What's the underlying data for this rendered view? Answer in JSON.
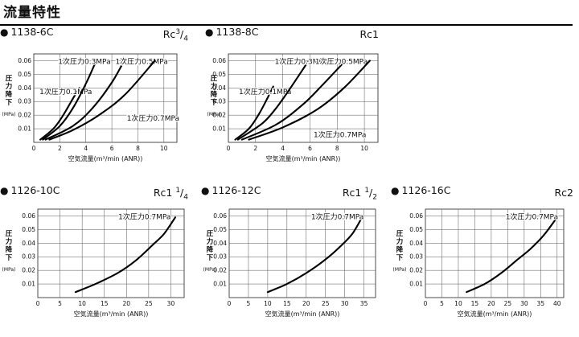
{
  "page": {
    "title": "流量特性"
  },
  "chart_data": [
    {
      "type": "line",
      "title": "1138-6C",
      "port": {
        "base": "Rc",
        "sup": "3",
        "sep": "/",
        "sub": "4"
      },
      "xlabel": "空気流量(m³/min (ANR))",
      "ylabel": [
        "圧",
        "力",
        "降",
        "下"
      ],
      "yunit": "(MPa)",
      "xlim": [
        0,
        11
      ],
      "ylim": [
        0,
        0.065
      ],
      "xticks": [
        0,
        2,
        4,
        6,
        8,
        10
      ],
      "yticks": [
        0.01,
        0.02,
        0.03,
        0.04,
        0.05,
        0.06
      ],
      "ytick_labels": [
        "0.01",
        "0.02",
        "0.03",
        "0.04",
        "0.05",
        "0.06"
      ],
      "grid": true,
      "series": [
        {
          "name": "1次圧力0.1MPa",
          "x": [
            0.5,
            1.5,
            2.2,
            3.0,
            3.5
          ],
          "y": [
            0.002,
            0.01,
            0.019,
            0.032,
            0.04
          ]
        },
        {
          "name": "1次圧力0.3MPa",
          "x": [
            0.7,
            2.0,
            3.0,
            4.0,
            4.8
          ],
          "y": [
            0.002,
            0.012,
            0.025,
            0.043,
            0.06
          ]
        },
        {
          "name": "1次圧力0.5MPa",
          "x": [
            0.9,
            3.0,
            4.5,
            6.0,
            7.0
          ],
          "y": [
            0.002,
            0.012,
            0.025,
            0.044,
            0.061
          ]
        },
        {
          "name": "1次圧力0.7MPa",
          "x": [
            1.2,
            3.0,
            5.0,
            7.0,
            9.3
          ],
          "y": [
            0.002,
            0.009,
            0.02,
            0.035,
            0.06
          ]
        }
      ]
    },
    {
      "type": "line",
      "title": "1138-8C",
      "port": {
        "base": "Rc1",
        "sup": "",
        "sep": "",
        "sub": ""
      },
      "xlabel": "空気流量(m³/min (ANR))",
      "ylabel": [
        "圧",
        "力",
        "降",
        "下"
      ],
      "yunit": "(MPa)",
      "xlim": [
        0,
        11
      ],
      "ylim": [
        0,
        0.065
      ],
      "xticks": [
        0,
        2,
        4,
        6,
        8,
        10
      ],
      "yticks": [
        0.01,
        0.02,
        0.03,
        0.04,
        0.05,
        0.06
      ],
      "ytick_labels": [
        "0.01",
        "0.02",
        "0.03",
        "0.04",
        "0.05",
        "0.06"
      ],
      "grid": true,
      "series": [
        {
          "name": "1次圧力0.1MPa",
          "x": [
            0.5,
            1.5,
            2.2,
            2.8,
            3.3
          ],
          "y": [
            0.002,
            0.01,
            0.02,
            0.031,
            0.041
          ]
        },
        {
          "name": "1次圧力0.3MPa",
          "x": [
            0.7,
            2.5,
            3.5,
            4.5,
            5.9
          ],
          "y": [
            0.002,
            0.014,
            0.025,
            0.039,
            0.06
          ]
        },
        {
          "name": "1次圧力0.5MPa",
          "x": [
            1.0,
            3.5,
            5.5,
            7.0,
            8.6
          ],
          "y": [
            0.002,
            0.013,
            0.028,
            0.043,
            0.06
          ]
        },
        {
          "name": "1次圧力0.7MPa",
          "x": [
            1.5,
            4.0,
            6.5,
            8.5,
            10.4
          ],
          "y": [
            0.002,
            0.011,
            0.024,
            0.04,
            0.06
          ]
        }
      ]
    },
    {
      "type": "line",
      "title": "1126-10C",
      "port": {
        "base": "Rc1 ",
        "sup": "1",
        "sep": "/",
        "sub": "4"
      },
      "xlabel": "空気流量(m³/min (ANR))",
      "ylabel": [
        "圧",
        "力",
        "降",
        "下"
      ],
      "yunit": "(MPa)",
      "xlim": [
        0,
        33
      ],
      "ylim": [
        0,
        0.065
      ],
      "xticks": [
        0,
        5,
        10,
        15,
        20,
        25,
        30
      ],
      "yticks": [
        0.01,
        0.02,
        0.03,
        0.04,
        0.05,
        0.06
      ],
      "ytick_labels": [
        "0.01",
        "0.02",
        "0.03",
        "0.04",
        "0.05",
        "0.06"
      ],
      "grid": true,
      "series": [
        {
          "name": "1次圧力0.7MPa",
          "x": [
            8.5,
            13,
            18,
            22,
            26,
            28.5,
            31
          ],
          "y": [
            0.004,
            0.01,
            0.018,
            0.027,
            0.039,
            0.047,
            0.059
          ]
        }
      ]
    },
    {
      "type": "line",
      "title": "1126-12C",
      "port": {
        "base": "Rc1 ",
        "sup": "1",
        "sep": "/",
        "sub": "2"
      },
      "xlabel": "空気流量(m³/min (ANR))",
      "ylabel": [
        "圧",
        "力",
        "降",
        "下"
      ],
      "yunit": "(MPa)",
      "xlim": [
        0,
        38
      ],
      "ylim": [
        0,
        0.065
      ],
      "xticks": [
        0,
        5,
        10,
        15,
        20,
        25,
        30,
        35
      ],
      "yticks": [
        0.01,
        0.02,
        0.03,
        0.04,
        0.05,
        0.06
      ],
      "ytick_labels": [
        "0.01",
        "0.02",
        "0.03",
        "0.04",
        "0.05",
        "0.06"
      ],
      "grid": true,
      "series": [
        {
          "name": "1次圧力0.7MPa",
          "x": [
            10,
            15,
            20,
            25,
            29,
            32,
            34.5
          ],
          "y": [
            0.004,
            0.01,
            0.018,
            0.028,
            0.038,
            0.047,
            0.059
          ]
        }
      ]
    },
    {
      "type": "line",
      "title": "1126-16C",
      "port": {
        "base": "Rc2",
        "sup": "",
        "sep": "",
        "sub": ""
      },
      "xlabel": "空気流量(m³/min (ANR))",
      "ylabel": [
        "圧",
        "力",
        "降",
        "下"
      ],
      "yunit": "(MPa)",
      "xlim": [
        0,
        42
      ],
      "ylim": [
        0,
        0.065
      ],
      "xticks": [
        0,
        5,
        10,
        15,
        20,
        25,
        30,
        35,
        40
      ],
      "yticks": [
        0.01,
        0.02,
        0.03,
        0.04,
        0.05,
        0.06
      ],
      "ytick_labels": [
        "0.01",
        "0.02",
        "0.03",
        "0.04",
        "0.05",
        "0.06"
      ],
      "grid": true,
      "series": [
        {
          "name": "1次圧力0.7MPa",
          "x": [
            12.5,
            18,
            23,
            28,
            32,
            36,
            40
          ],
          "y": [
            0.004,
            0.01,
            0.018,
            0.028,
            0.036,
            0.046,
            0.059
          ]
        }
      ]
    }
  ]
}
